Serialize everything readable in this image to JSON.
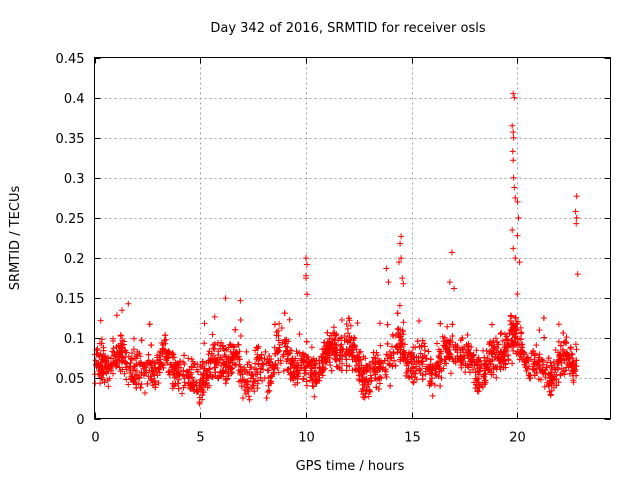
{
  "chart_data": {
    "type": "scatter",
    "title": "Day 342 of 2016, SRMTID for receiver osls",
    "xlabel": "GPS time / hours",
    "ylabel": "SRMTID / TECUs",
    "xlim": [
      0,
      24.4
    ],
    "ylim": [
      0,
      0.45
    ],
    "x_ticks": [
      0,
      5,
      10,
      15,
      20
    ],
    "x_tick_labels": [
      "0",
      "5",
      "10",
      "15",
      "20"
    ],
    "y_ticks": [
      0,
      0.05,
      0.1,
      0.15,
      0.2,
      0.25,
      0.3,
      0.35,
      0.4,
      0.45
    ],
    "y_tick_labels": [
      "0",
      "0.05",
      "0.1",
      "0.15",
      "0.2",
      "0.25",
      "0.3",
      "0.35",
      "0.4",
      "0.45"
    ],
    "grid": true,
    "marker": "+",
    "color": "#ff0000",
    "x_range_data": [
      0.0,
      22.8
    ],
    "n_points": 2500,
    "baseline": [
      [
        0.0,
        0.06
      ],
      [
        1.0,
        0.062
      ],
      [
        1.5,
        0.08
      ],
      [
        2.0,
        0.068
      ],
      [
        3.0,
        0.062
      ],
      [
        4.0,
        0.058
      ],
      [
        5.0,
        0.06
      ],
      [
        6.0,
        0.062
      ],
      [
        7.0,
        0.064
      ],
      [
        8.0,
        0.066
      ],
      [
        9.0,
        0.068
      ],
      [
        10.0,
        0.07
      ],
      [
        11.0,
        0.075
      ],
      [
        12.0,
        0.078
      ],
      [
        13.0,
        0.065
      ],
      [
        14.0,
        0.075
      ],
      [
        15.0,
        0.075
      ],
      [
        16.0,
        0.072
      ],
      [
        17.0,
        0.072
      ],
      [
        18.0,
        0.07
      ],
      [
        19.0,
        0.078
      ],
      [
        20.0,
        0.085
      ],
      [
        21.0,
        0.072
      ],
      [
        22.0,
        0.06
      ],
      [
        22.8,
        0.062
      ]
    ],
    "spread": 0.022,
    "y_min_floor": 0.018,
    "notable_points": [
      {
        "x": 19.8,
        "y": 0.405
      },
      {
        "x": 19.85,
        "y": 0.4
      },
      {
        "x": 19.75,
        "y": 0.365
      },
      {
        "x": 19.8,
        "y": 0.357
      },
      {
        "x": 19.82,
        "y": 0.35
      },
      {
        "x": 19.78,
        "y": 0.333
      },
      {
        "x": 19.8,
        "y": 0.322
      },
      {
        "x": 19.82,
        "y": 0.3
      },
      {
        "x": 19.85,
        "y": 0.288
      },
      {
        "x": 19.9,
        "y": 0.275
      },
      {
        "x": 20.0,
        "y": 0.27
      },
      {
        "x": 20.05,
        "y": 0.25
      },
      {
        "x": 19.75,
        "y": 0.235
      },
      {
        "x": 20.0,
        "y": 0.228
      },
      {
        "x": 19.8,
        "y": 0.212
      },
      {
        "x": 19.9,
        "y": 0.2
      },
      {
        "x": 20.1,
        "y": 0.195
      },
      {
        "x": 22.8,
        "y": 0.277
      },
      {
        "x": 22.75,
        "y": 0.258
      },
      {
        "x": 22.8,
        "y": 0.25
      },
      {
        "x": 22.78,
        "y": 0.243
      },
      {
        "x": 22.85,
        "y": 0.18
      },
      {
        "x": 14.5,
        "y": 0.227
      },
      {
        "x": 14.45,
        "y": 0.218
      },
      {
        "x": 14.5,
        "y": 0.2
      },
      {
        "x": 14.4,
        "y": 0.195
      },
      {
        "x": 14.55,
        "y": 0.175
      },
      {
        "x": 14.6,
        "y": 0.168
      },
      {
        "x": 13.8,
        "y": 0.187
      },
      {
        "x": 13.9,
        "y": 0.17
      },
      {
        "x": 16.9,
        "y": 0.207
      },
      {
        "x": 16.8,
        "y": 0.17
      },
      {
        "x": 17.0,
        "y": 0.162
      },
      {
        "x": 10.0,
        "y": 0.2
      },
      {
        "x": 10.05,
        "y": 0.192
      },
      {
        "x": 10.0,
        "y": 0.178
      },
      {
        "x": 10.0,
        "y": 0.175
      },
      {
        "x": 10.05,
        "y": 0.155
      },
      {
        "x": 1.6,
        "y": 0.143
      },
      {
        "x": 1.3,
        "y": 0.135
      },
      {
        "x": 6.2,
        "y": 0.15
      },
      {
        "x": 6.9,
        "y": 0.147
      }
    ]
  }
}
